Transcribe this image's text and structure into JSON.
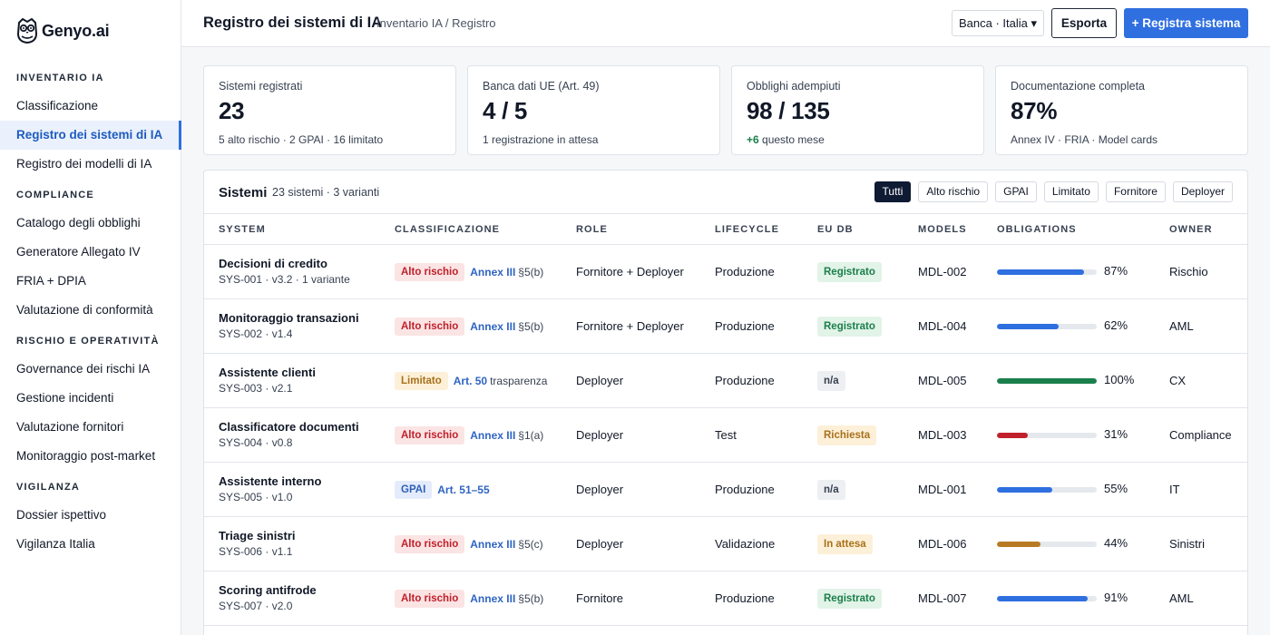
{
  "brand": {
    "name": "Genyo.ai"
  },
  "sidebar": {
    "sections": [
      {
        "title": "INVENTARIO IA",
        "items": [
          "Classificazione",
          "Registro dei sistemi di IA",
          "Registro dei modelli di IA"
        ]
      },
      {
        "title": "COMPLIANCE",
        "items": [
          "Catalogo degli obblighi",
          "Generatore Allegato IV",
          "FRIA + DPIA",
          "Valutazione di conformità"
        ]
      },
      {
        "title": "RISCHIO E OPERATIVITÀ",
        "items": [
          "Governance dei rischi IA",
          "Gestione incidenti",
          "Valutazione fornitori",
          "Monitoraggio post-market"
        ]
      },
      {
        "title": "VIGILANZA",
        "items": [
          "Dossier ispettivo",
          "Vigilanza Italia"
        ]
      }
    ],
    "active_item": "Registro dei sistemi di IA"
  },
  "header": {
    "title": "Registro dei sistemi di IA",
    "breadcrumb": "Inventario IA / Registro",
    "org_select": "Banca · Italia ▾",
    "export_label": "Esporta",
    "primary_label": "+ Registra sistema"
  },
  "stats": [
    {
      "label": "Sistemi registrati",
      "value": "23",
      "sub": "5 alto rischio · 2 GPAI · 16 limitato"
    },
    {
      "label": "Banca dati UE (Art. 49)",
      "value": "4 / 5",
      "sub": "1 registrazione in attesa"
    },
    {
      "label": "Obblighi adempiuti",
      "value": "98 / 135",
      "sub_positive": "+6",
      "sub": "questo mese"
    },
    {
      "label": "Documentazione completa",
      "value": "87%",
      "sub": "Annex IV · FRIA · Model cards"
    }
  ],
  "table": {
    "title": "Sistemi",
    "subtitle": "23 sistemi · 3 varianti",
    "filters": [
      "Tutti",
      "Alto rischio",
      "GPAI",
      "Limitato",
      "Fornitore",
      "Deployer"
    ],
    "active_filter": "Tutti",
    "columns": [
      "SYSTEM",
      "CLASSIFICAZIONE",
      "ROLE",
      "LIFECYCLE",
      "EU DB",
      "MODELS",
      "OBLIGATIONS",
      "OWNER"
    ],
    "rows": [
      {
        "name": "Decisioni di credito",
        "sub": "SYS-001 · v3.2 · 1 variante",
        "class_badge": "Alto rischio",
        "class_type": "high",
        "ref": "Annex III",
        "ref_sub": "§5(b)",
        "role": "Fornitore + Deployer",
        "lifecycle": "Produzione",
        "eu_db": "Registrato",
        "eu_type": "reg",
        "model": "MDL-002",
        "obligations": 87,
        "obligations_label": "87%",
        "bar_color": "#2f6fe0",
        "owner": "Rischio"
      },
      {
        "name": "Monitoraggio transazioni",
        "sub": "SYS-002 · v1.4",
        "class_badge": "Alto rischio",
        "class_type": "high",
        "ref": "Annex III",
        "ref_sub": "§5(b)",
        "role": "Fornitore + Deployer",
        "lifecycle": "Produzione",
        "eu_db": "Registrato",
        "eu_type": "reg",
        "model": "MDL-004",
        "obligations": 62,
        "obligations_label": "62%",
        "bar_color": "#2f6fe0",
        "owner": "AML"
      },
      {
        "name": "Assistente clienti",
        "sub": "SYS-003 · v2.1",
        "class_badge": "Limitato",
        "class_type": "limited",
        "ref": "Art. 50",
        "ref_sub": "trasparenza",
        "role": "Deployer",
        "lifecycle": "Produzione",
        "eu_db": "n/a",
        "eu_type": "na",
        "model": "MDL-005",
        "obligations": 100,
        "obligations_label": "100%",
        "bar_color": "#1a7f4b",
        "owner": "CX"
      },
      {
        "name": "Classificatore documenti",
        "sub": "SYS-004 · v0.8",
        "class_badge": "Alto rischio",
        "class_type": "high",
        "ref": "Annex III",
        "ref_sub": "§1(a)",
        "role": "Deployer",
        "lifecycle": "Test",
        "eu_db": "Richiesta",
        "eu_type": "req",
        "model": "MDL-003",
        "obligations": 31,
        "obligations_label": "31%",
        "bar_color": "#c0202a",
        "owner": "Compliance"
      },
      {
        "name": "Assistente interno",
        "sub": "SYS-005 · v1.0",
        "class_badge": "GPAI",
        "class_type": "gpai",
        "ref": "Art. 51–55",
        "ref_sub": "",
        "role": "Deployer",
        "lifecycle": "Produzione",
        "eu_db": "n/a",
        "eu_type": "na",
        "model": "MDL-001",
        "obligations": 55,
        "obligations_label": "55%",
        "bar_color": "#2f6fe0",
        "owner": "IT"
      },
      {
        "name": "Triage sinistri",
        "sub": "SYS-006 · v1.1",
        "class_badge": "Alto rischio",
        "class_type": "high",
        "ref": "Annex III",
        "ref_sub": "§5(c)",
        "role": "Deployer",
        "lifecycle": "Validazione",
        "eu_db": "In attesa",
        "eu_type": "wait",
        "model": "MDL-006",
        "obligations": 44,
        "obligations_label": "44%",
        "bar_color": "#b87a22",
        "owner": "Sinistri"
      },
      {
        "name": "Scoring antifrode",
        "sub": "SYS-007 · v2.0",
        "class_badge": "Alto rischio",
        "class_type": "high",
        "ref": "Annex III",
        "ref_sub": "§5(b)",
        "role": "Fornitore",
        "lifecycle": "Produzione",
        "eu_db": "Registrato",
        "eu_type": "reg",
        "model": "MDL-007",
        "obligations": 91,
        "obligations_label": "91%",
        "bar_color": "#2f6fe0",
        "owner": "AML"
      }
    ]
  }
}
